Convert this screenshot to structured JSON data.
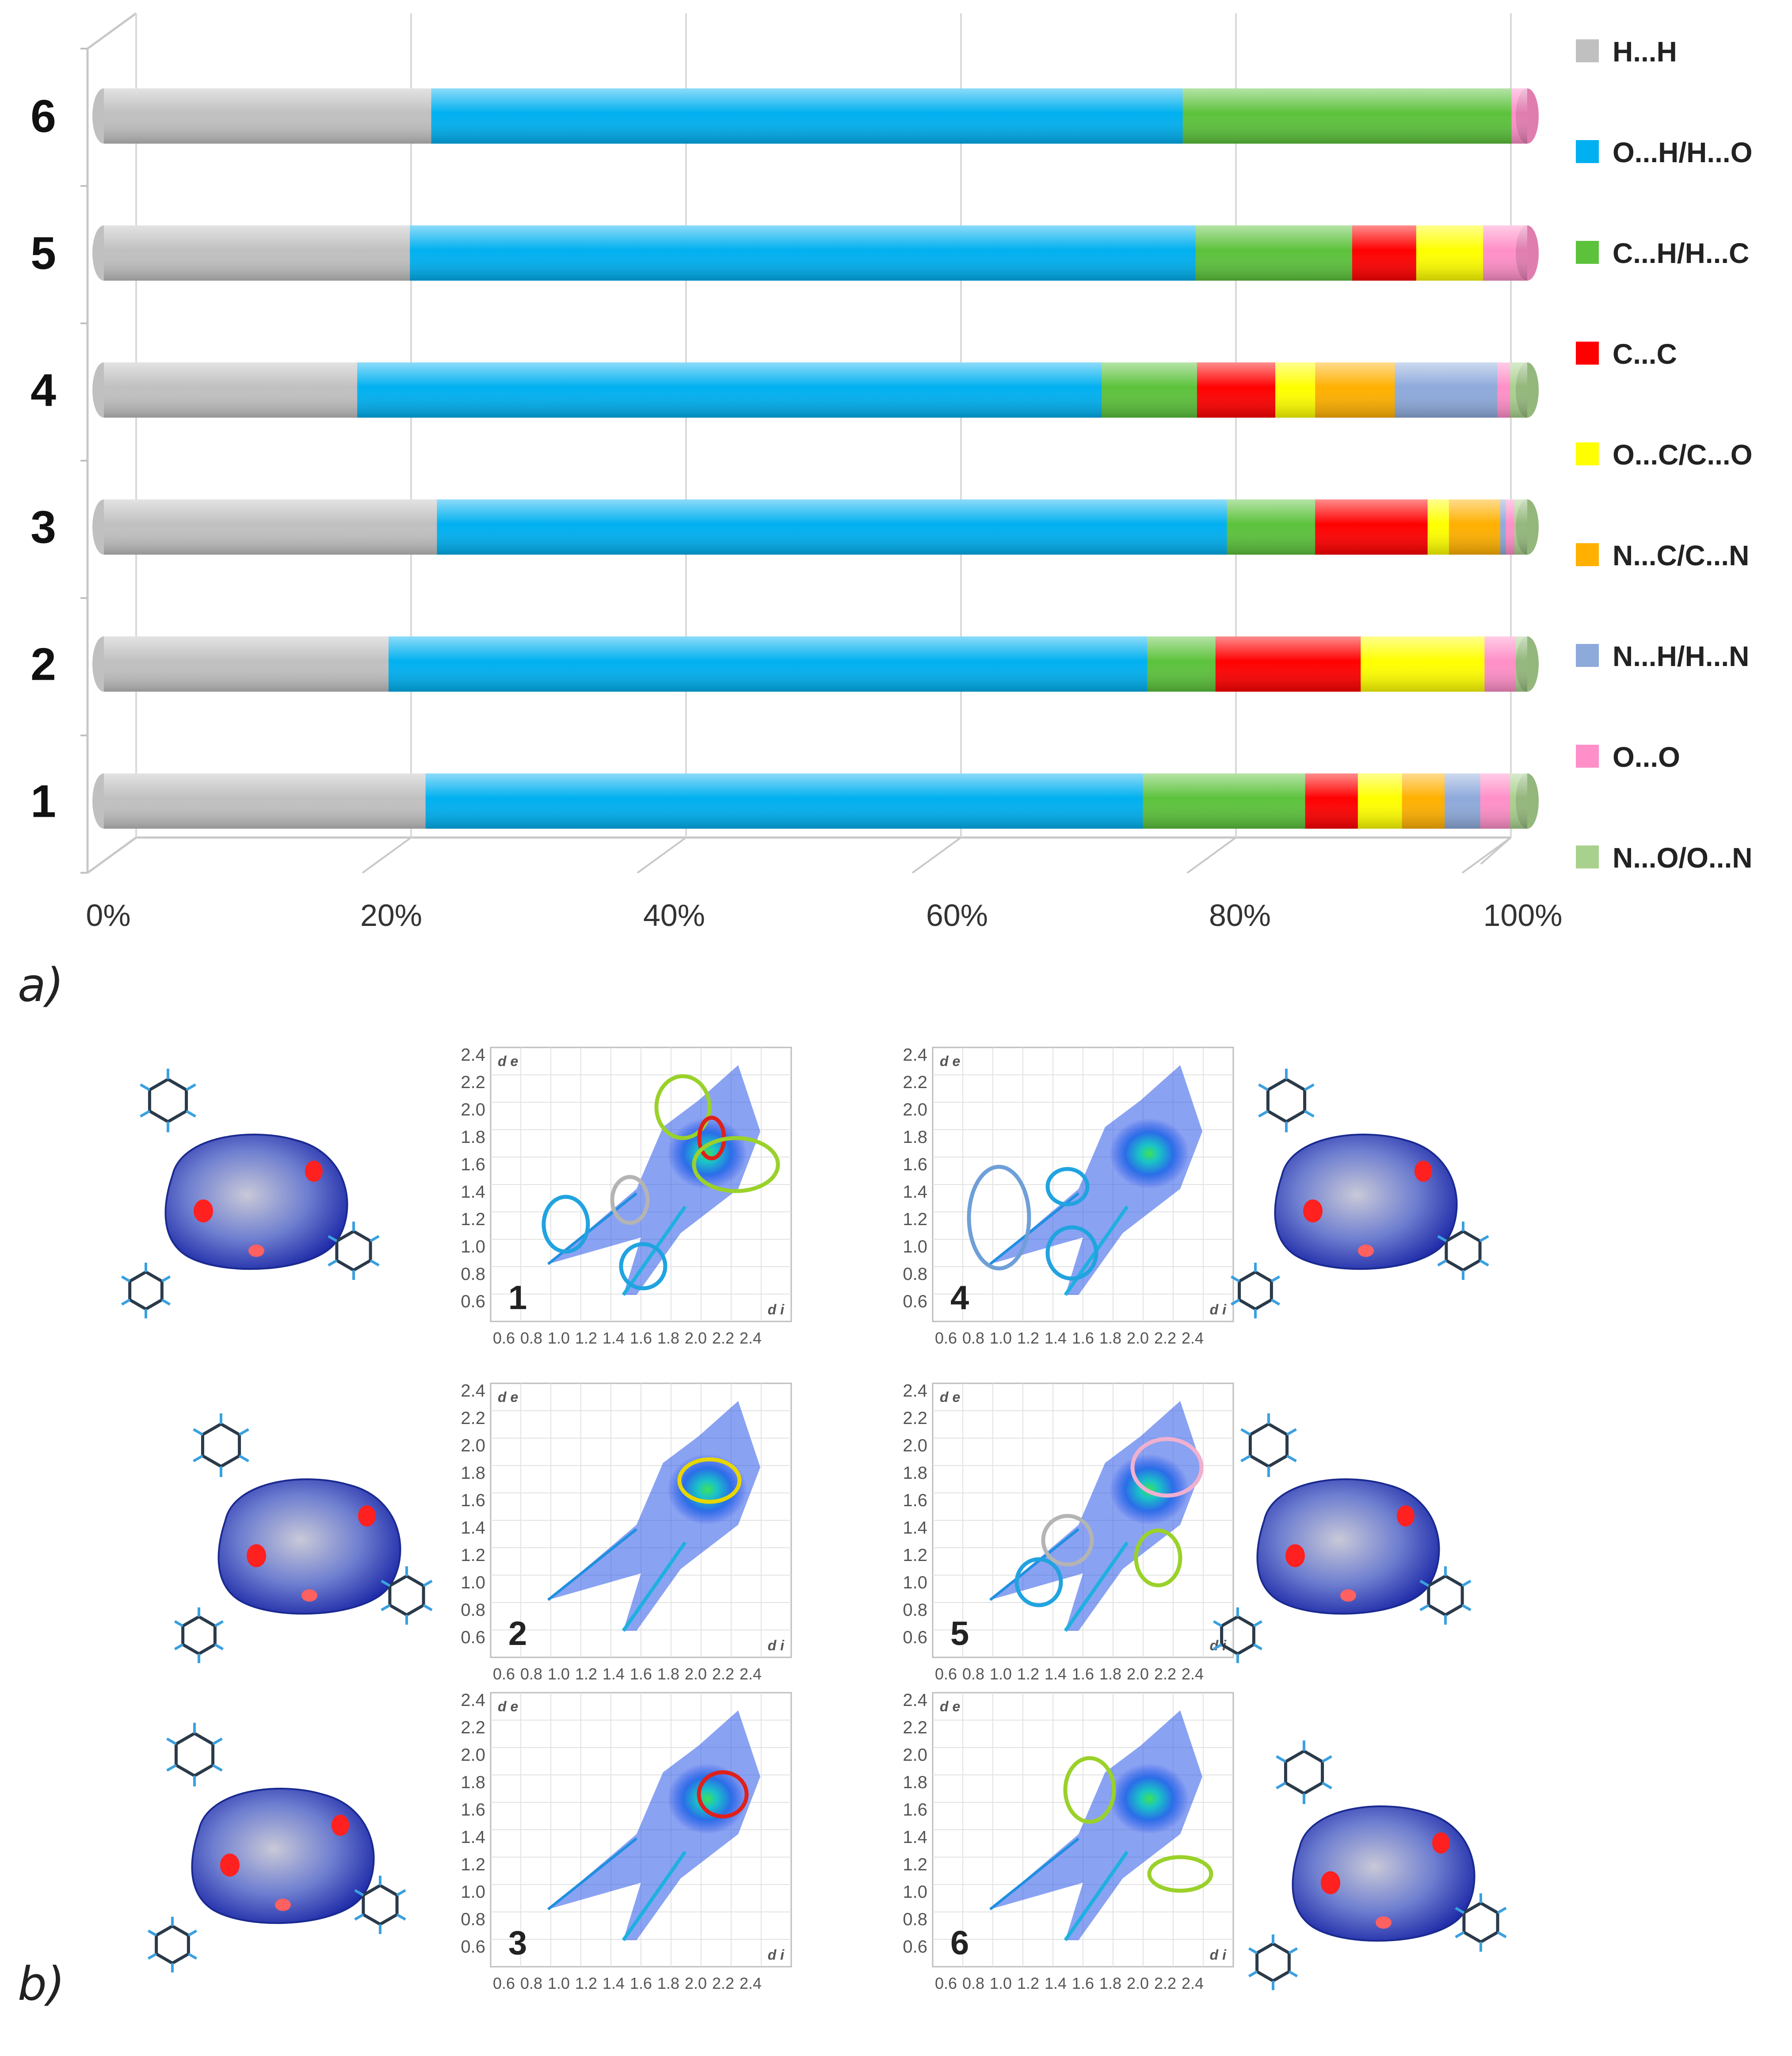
{
  "chart_data": {
    "type": "bar",
    "orientation": "horizontal",
    "stacked": "percent",
    "categories": [
      "6",
      "5",
      "4",
      "3",
      "2",
      "1"
    ],
    "x_ticks": [
      "0%",
      "20%",
      "40%",
      "60%",
      "80%",
      "100%"
    ],
    "xlim": [
      0,
      100
    ],
    "grid": true,
    "legend_position": "right",
    "series": [
      {
        "name": "H...H",
        "color": "#c0c0c0",
        "values": [
          23.0,
          21.5,
          17.8,
          23.4,
          20.0,
          22.6
        ]
      },
      {
        "name": "O...H/H...O",
        "color": "#00b0f0",
        "values": [
          52.8,
          55.2,
          52.3,
          55.5,
          53.3,
          50.4
        ]
      },
      {
        "name": "C...H/H...C",
        "color": "#5cc23c",
        "values": [
          23.1,
          11.0,
          6.7,
          6.2,
          4.8,
          11.4
        ]
      },
      {
        "name": "C...C",
        "color": "#ff0000",
        "values": [
          0.0,
          4.5,
          5.5,
          7.9,
          10.2,
          3.7
        ]
      },
      {
        "name": "O...C/C...O",
        "color": "#ffff00",
        "values": [
          0.0,
          4.7,
          2.8,
          1.5,
          8.7,
          3.1
        ]
      },
      {
        "name": "N...C/C...N",
        "color": "#ffb000",
        "values": [
          0.0,
          0.0,
          5.6,
          3.6,
          0.0,
          3.0
        ]
      },
      {
        "name": "N...H/H...N",
        "color": "#8eaadb",
        "values": [
          0.0,
          0.0,
          7.2,
          0.4,
          0.0,
          2.5
        ]
      },
      {
        "name": "O...O",
        "color": "#ff8fc8",
        "values": [
          1.1,
          3.1,
          0.9,
          0.6,
          2.2,
          2.1
        ]
      },
      {
        "name": "N...O/O...N",
        "color": "#a9d18e",
        "values": [
          0.0,
          0.0,
          1.2,
          0.9,
          0.8,
          1.2
        ]
      }
    ]
  },
  "panel_labels": {
    "a": "a)",
    "b": "b)"
  },
  "fingerprint_plots": {
    "de_label": "d e",
    "di_label": "d i",
    "y_ticks": [
      "2.4",
      "2.2",
      "2.0",
      "1.8",
      "1.6",
      "1.4",
      "1.2",
      "1.0",
      "0.8",
      "0.6"
    ],
    "x_ticks": [
      "0.6",
      "0.8",
      "1.0",
      "1.2",
      "1.4",
      "1.6",
      "1.8",
      "2.0",
      "2.2",
      "2.4"
    ],
    "plots": [
      {
        "label": "1",
        "highlight_colors": [
          "#21a3e0",
          "#21a3e0",
          "#b4b4b4",
          "#9ad12a",
          "#e0201a",
          "#9ad12a"
        ]
      },
      {
        "label": "2",
        "highlight_colors": [
          "#e8d600"
        ]
      },
      {
        "label": "3",
        "highlight_colors": [
          "#e0201a"
        ]
      },
      {
        "label": "4",
        "highlight_colors": [
          "#6f9fd8",
          "#21a3e0",
          "#21a3e0"
        ]
      },
      {
        "label": "5",
        "highlight_colors": [
          "#21a3e0",
          "#b4b4b4",
          "#9ad12a",
          "#f0b0d0"
        ]
      },
      {
        "label": "6",
        "highlight_colors": [
          "#9ad12a",
          "#9ad12a"
        ]
      }
    ]
  },
  "icons": {
    "surface": "hirshfeld-surface-icon",
    "molecule": "molecule-structure-icon"
  }
}
